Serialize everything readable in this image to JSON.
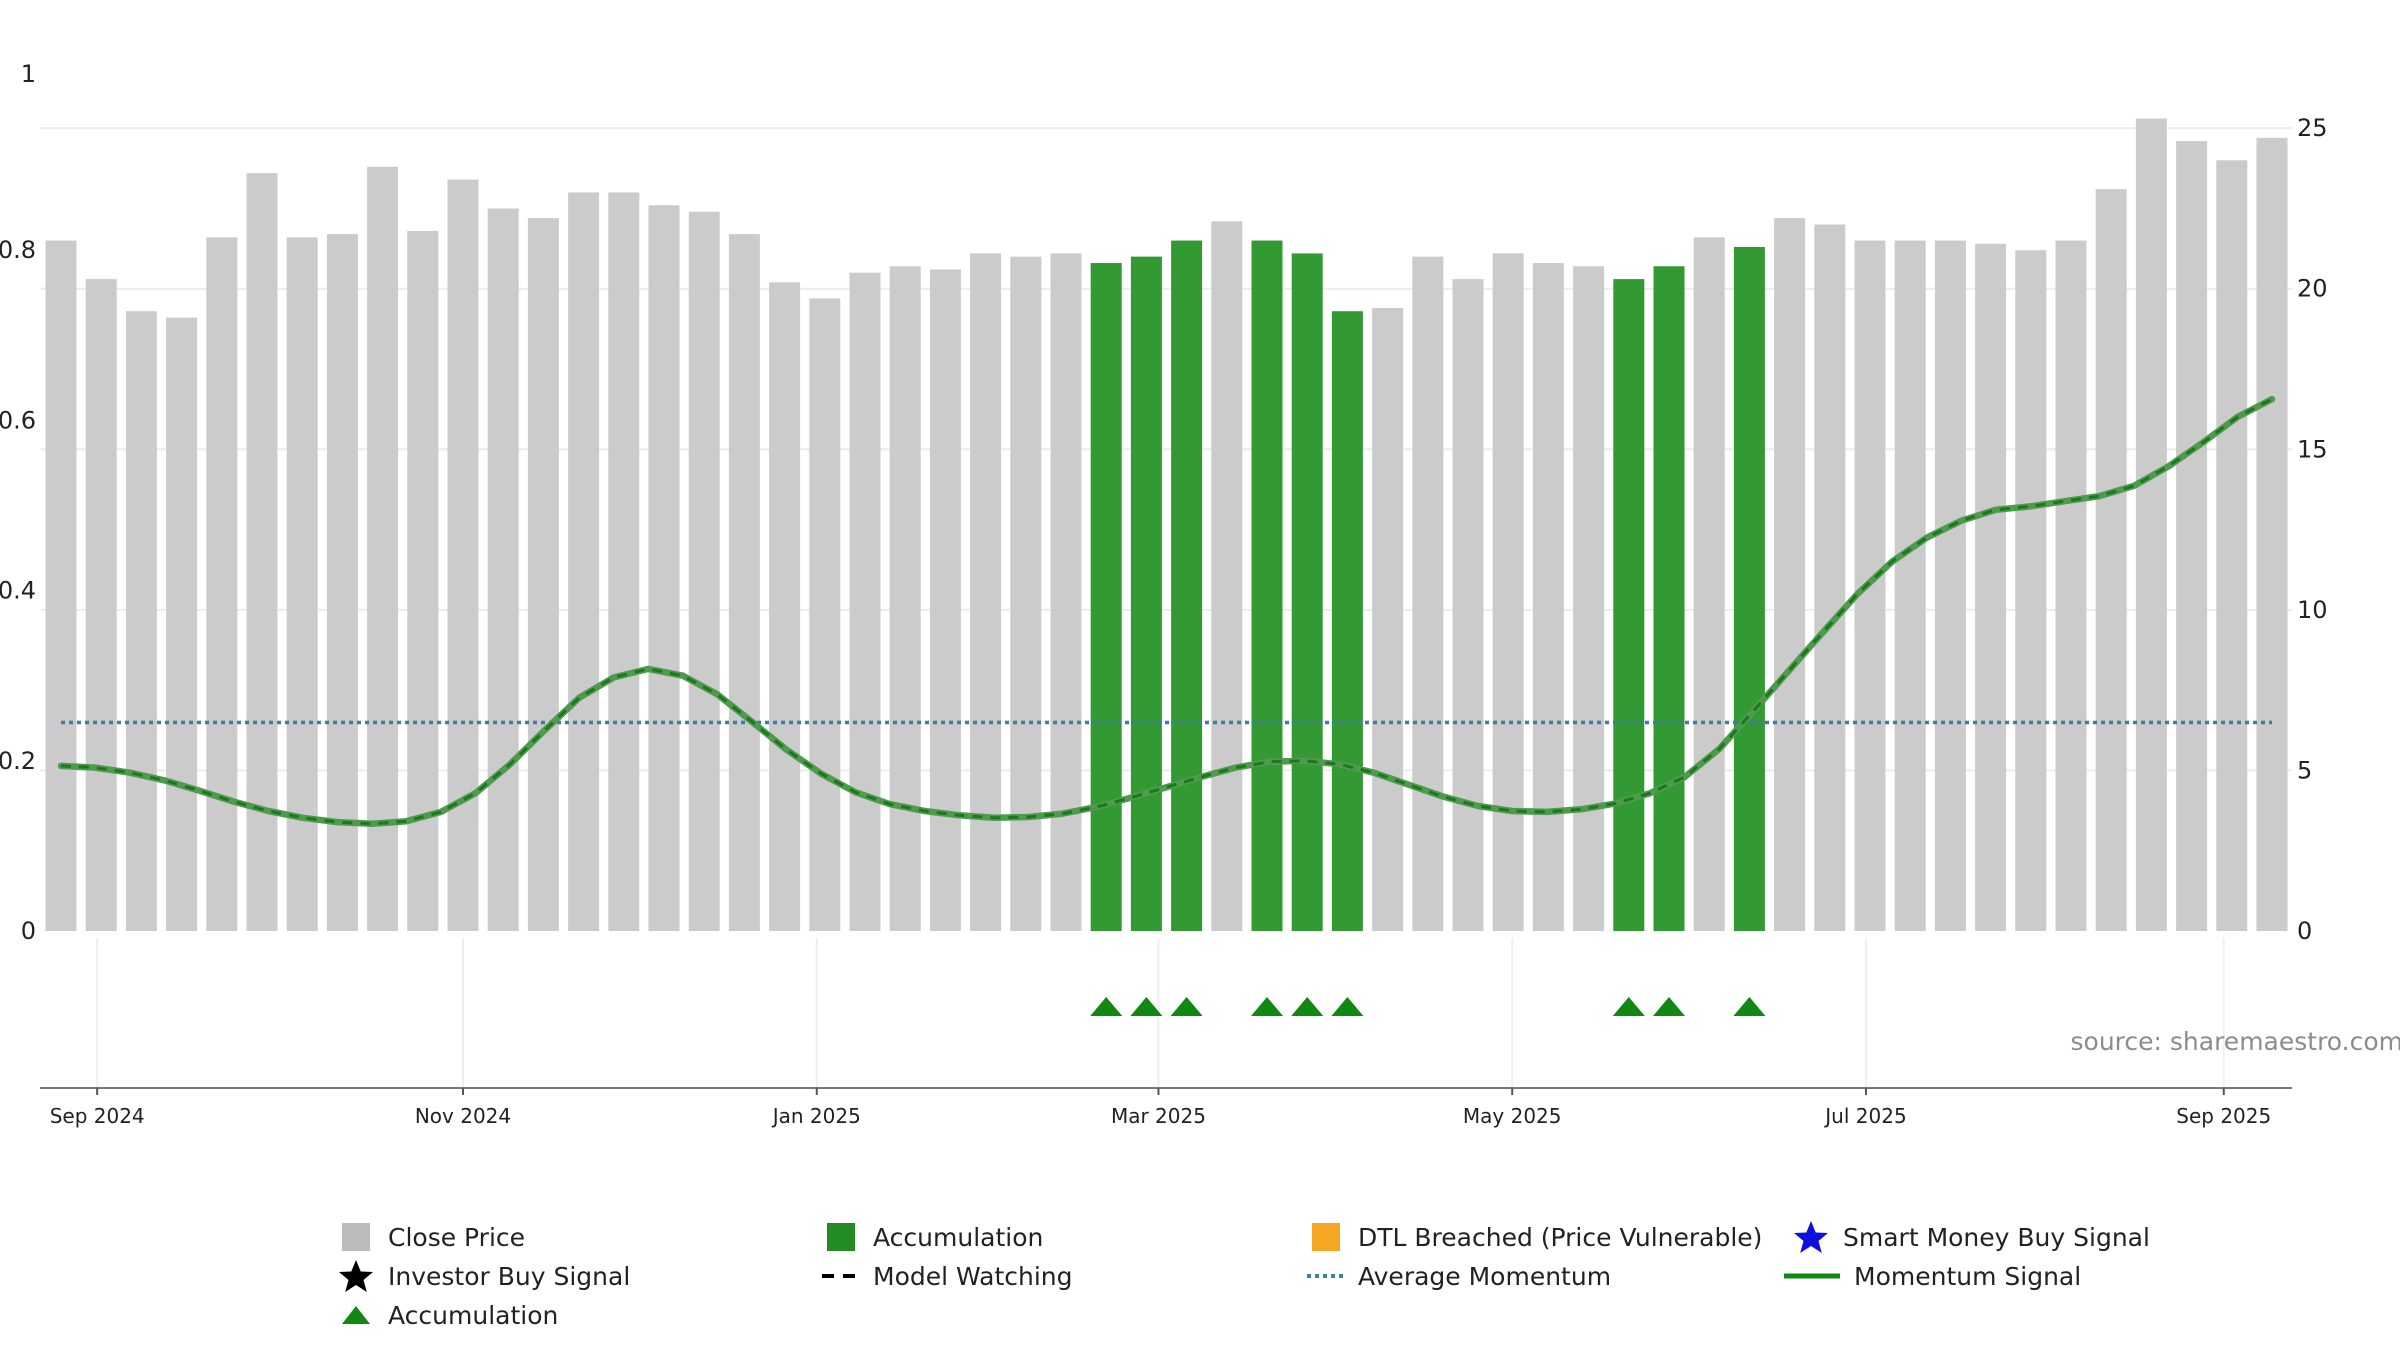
{
  "source_note": "source: sharemaestro.com",
  "colors": {
    "close_price": "#cbcbcb",
    "accumulation_bar": "#339933",
    "momentum": "#1a7a1a",
    "average_momentum": "#3d7ca8",
    "triangle": "#118811",
    "dtl": "#f5a623",
    "smart_money": "#1010dd",
    "grid": "#ececec"
  },
  "chart_data": {
    "type": "bar",
    "x_tick_labels": [
      "Sep 2024",
      "Nov 2024",
      "Jan 2025",
      "Mar 2025",
      "May 2025",
      "Jul 2025",
      "Sep 2025"
    ],
    "x_tick_bar_positions": [
      0.9,
      10,
      18.8,
      27.3,
      36.1,
      44.9,
      53.8
    ],
    "left_axis": {
      "ylim": [
        0,
        1
      ],
      "ticks": [
        0,
        0.2,
        0.4,
        0.6,
        0.8,
        1
      ],
      "tick_labels": [
        "0",
        "0.2",
        "0.4",
        "0.6",
        "0.8",
        "1"
      ]
    },
    "right_axis": {
      "ylim": [
        0,
        26.5
      ],
      "ticks": [
        0,
        5,
        10,
        15,
        20,
        25
      ],
      "tick_labels": [
        "0",
        "5",
        "10",
        "15",
        "20",
        "25"
      ]
    },
    "grid": true,
    "legend_position": "bottom",
    "series": [
      {
        "name": "Close Price",
        "axis": "right",
        "values": [
          21.5,
          20.3,
          19.3,
          19.1,
          21.6,
          23.6,
          21.6,
          21.7,
          23.8,
          21.8,
          23.4,
          22.5,
          22.2,
          23.0,
          23.0,
          22.6,
          22.4,
          21.7,
          20.2,
          19.7,
          20.5,
          20.7,
          20.6,
          21.1,
          21.0,
          21.1,
          20.8,
          21.0,
          21.5,
          22.1,
          21.5,
          21.1,
          19.3,
          19.4,
          21.0,
          20.3,
          21.1,
          20.8,
          20.7,
          20.3,
          20.7,
          21.6,
          21.3,
          22.2,
          22.0,
          21.5,
          21.5,
          21.5,
          21.4,
          21.2,
          21.5,
          23.1,
          25.3,
          24.6,
          24.0,
          24.7
        ]
      },
      {
        "name": "Accumulation",
        "axis": "right",
        "bar_indices": [
          26,
          27,
          28,
          30,
          31,
          32,
          39,
          40,
          42
        ]
      },
      {
        "name": "Momentum Signal",
        "axis": "left",
        "values": [
          0.194,
          0.192,
          0.186,
          0.177,
          0.165,
          0.152,
          0.141,
          0.133,
          0.128,
          0.126,
          0.129,
          0.14,
          0.162,
          0.196,
          0.236,
          0.274,
          0.298,
          0.308,
          0.3,
          0.278,
          0.246,
          0.213,
          0.185,
          0.163,
          0.149,
          0.141,
          0.136,
          0.133,
          0.134,
          0.138,
          0.146,
          0.157,
          0.169,
          0.181,
          0.192,
          0.199,
          0.2,
          0.196,
          0.186,
          0.172,
          0.158,
          0.147,
          0.141,
          0.14,
          0.143,
          0.15,
          0.162,
          0.181,
          0.214,
          0.259,
          0.305,
          0.351,
          0.396,
          0.434,
          0.462,
          0.482,
          0.495,
          0.499,
          0.505,
          0.511,
          0.523,
          0.546,
          0.574,
          0.604,
          0.625
        ]
      },
      {
        "name": "Average Momentum",
        "axis": "left",
        "values": [
          0.245
        ]
      },
      {
        "name": "Accumulation",
        "marker": "triangle",
        "bar_indices": [
          26,
          27,
          28,
          30,
          31,
          32,
          39,
          40,
          42
        ]
      }
    ]
  },
  "legend": [
    {
      "label": "Close Price",
      "symbol": "square",
      "color": "#bcbcbc"
    },
    {
      "label": "Accumulation",
      "symbol": "square",
      "color": "#228B22"
    },
    {
      "label": "DTL Breached (Price Vulnerable)",
      "symbol": "square",
      "color": "#f5a623"
    },
    {
      "label": "Smart Money Buy Signal",
      "symbol": "star",
      "color": "#1010dd"
    },
    {
      "label": "Investor Buy Signal",
      "symbol": "star",
      "color": "#000000"
    },
    {
      "label": "Model Watching",
      "symbol": "dashed-line",
      "color": "#000000"
    },
    {
      "label": "Average Momentum",
      "symbol": "dotted-line",
      "color": "#3d7ca8"
    },
    {
      "label": "Momentum Signal",
      "symbol": "solid-line",
      "color": "#118811"
    },
    {
      "label": "Accumulation",
      "symbol": "triangle",
      "color": "#118811"
    }
  ]
}
